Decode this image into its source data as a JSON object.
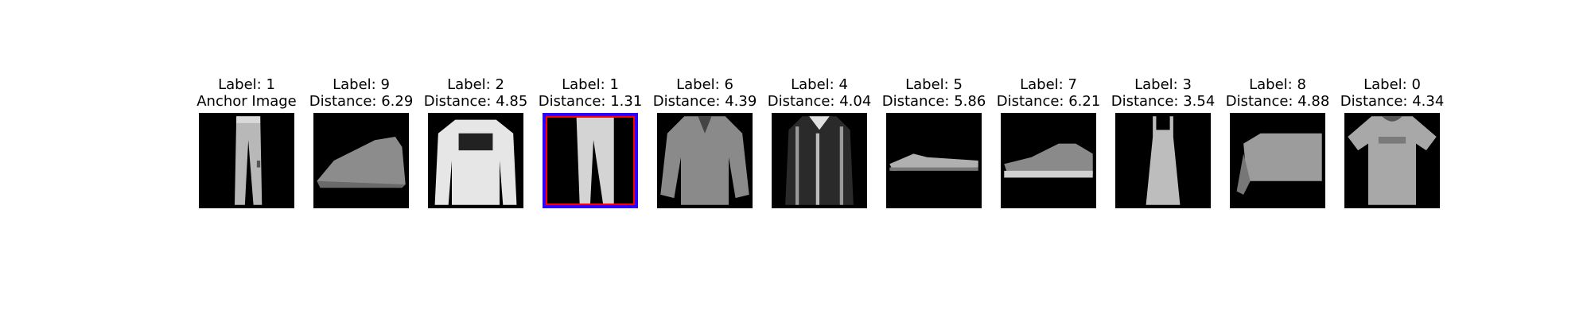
{
  "panels": [
    {
      "line1": "Label: 1",
      "line2": "Anchor Image",
      "item": "trousers"
    },
    {
      "line1": "Label: 9",
      "line2": "Distance: 6.29",
      "item": "ankle-boot"
    },
    {
      "line1": "Label: 2",
      "line2": "Distance: 4.85",
      "item": "pullover"
    },
    {
      "line1": "Label: 1",
      "line2": "Distance: 1.31",
      "item": "trousers",
      "highlight_colors": [
        "#2d00ff",
        "#ff0000"
      ]
    },
    {
      "line1": "Label: 6",
      "line2": "Distance: 4.39",
      "item": "shirt"
    },
    {
      "line1": "Label: 4",
      "line2": "Distance: 4.04",
      "item": "coat"
    },
    {
      "line1": "Label: 5",
      "line2": "Distance: 5.86",
      "item": "sandal"
    },
    {
      "line1": "Label: 7",
      "line2": "Distance: 6.21",
      "item": "sneaker"
    },
    {
      "line1": "Label: 3",
      "line2": "Distance: 3.54",
      "item": "dress"
    },
    {
      "line1": "Label: 8",
      "line2": "Distance: 4.88",
      "item": "bag"
    },
    {
      "line1": "Label: 0",
      "line2": "Distance: 4.34",
      "item": "t-shirt"
    }
  ]
}
